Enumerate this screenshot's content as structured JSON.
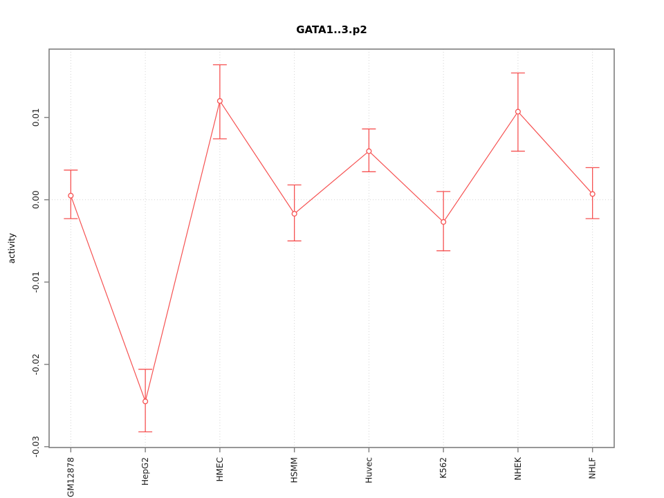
{
  "title": "GATA1..3.p2",
  "chart_data": {
    "type": "line",
    "title": "GATA1..3.p2",
    "xlabel": "",
    "ylabel": "activity",
    "categories": [
      "GM12878",
      "HepG2",
      "HMEC",
      "HSMM",
      "Huvec",
      "K562",
      "NHEK",
      "NHLF"
    ],
    "series": [
      {
        "name": "activity",
        "values": [
          0.0005,
          -0.0245,
          0.012,
          -0.0017,
          0.0059,
          -0.0027,
          0.0107,
          0.0007
        ],
        "error_low": [
          -0.0023,
          -0.0282,
          0.0074,
          -0.005,
          0.0034,
          -0.0062,
          0.0059,
          -0.0023
        ],
        "error_high": [
          0.0036,
          -0.0206,
          0.0164,
          0.0018,
          0.0086,
          0.001,
          0.0154,
          0.0039
        ]
      }
    ],
    "yticks": [
      -0.03,
      -0.02,
      -0.01,
      0.0,
      0.01
    ],
    "ytick_labels": [
      "-0.03",
      "-0.02",
      "-0.01",
      "0.00",
      "0.01"
    ],
    "ylim": [
      -0.0301,
      0.0183
    ],
    "xlim": [
      0.709,
      8.291
    ],
    "grid": "dotted vertical line at each category; dotted horizontal line at y=0",
    "legend_position": "none",
    "marker": "open-circle",
    "error_bars": true
  },
  "colors": {
    "series": "#f65151",
    "axis": "#7d7d7d",
    "grid": "#d2d2d2",
    "text": "#1c1c1c",
    "background": "#ffffff"
  }
}
